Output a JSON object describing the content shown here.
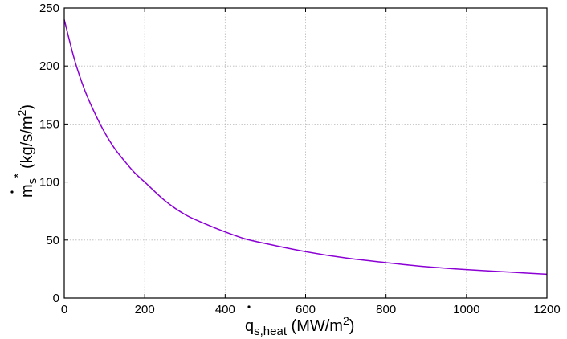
{
  "chart_data": {
    "type": "line",
    "xlabel": {
      "main": "q",
      "sub": "s,heat",
      "unit_pre": " (MW/m",
      "unit_sup": "2",
      "unit_post": ")"
    },
    "ylabel": {
      "main": "m",
      "sub": "s",
      "sup": "*",
      "unit_pre": " (kg/s/m",
      "unit_sup": "2",
      "unit_post": ")"
    },
    "xlim": [
      0,
      1200
    ],
    "ylim": [
      0,
      250
    ],
    "x_ticks": [
      0,
      200,
      400,
      600,
      800,
      1000,
      1200
    ],
    "y_ticks": [
      0,
      50,
      100,
      150,
      200,
      250
    ],
    "grid": true,
    "series": [
      {
        "color": "#8b00d4",
        "x": [
          0,
          25,
          50,
          75,
          100,
          125,
          150,
          175,
          200,
          250,
          300,
          350,
          400,
          450,
          500,
          600,
          700,
          800,
          900,
          1000,
          1100,
          1200
        ],
        "y": [
          240,
          206,
          180,
          160,
          143,
          129,
          118,
          108,
          100,
          84,
          72,
          64,
          57,
          51,
          47,
          40,
          34.5,
          30.5,
          27,
          24.5,
          22.5,
          20.5
        ]
      }
    ]
  }
}
